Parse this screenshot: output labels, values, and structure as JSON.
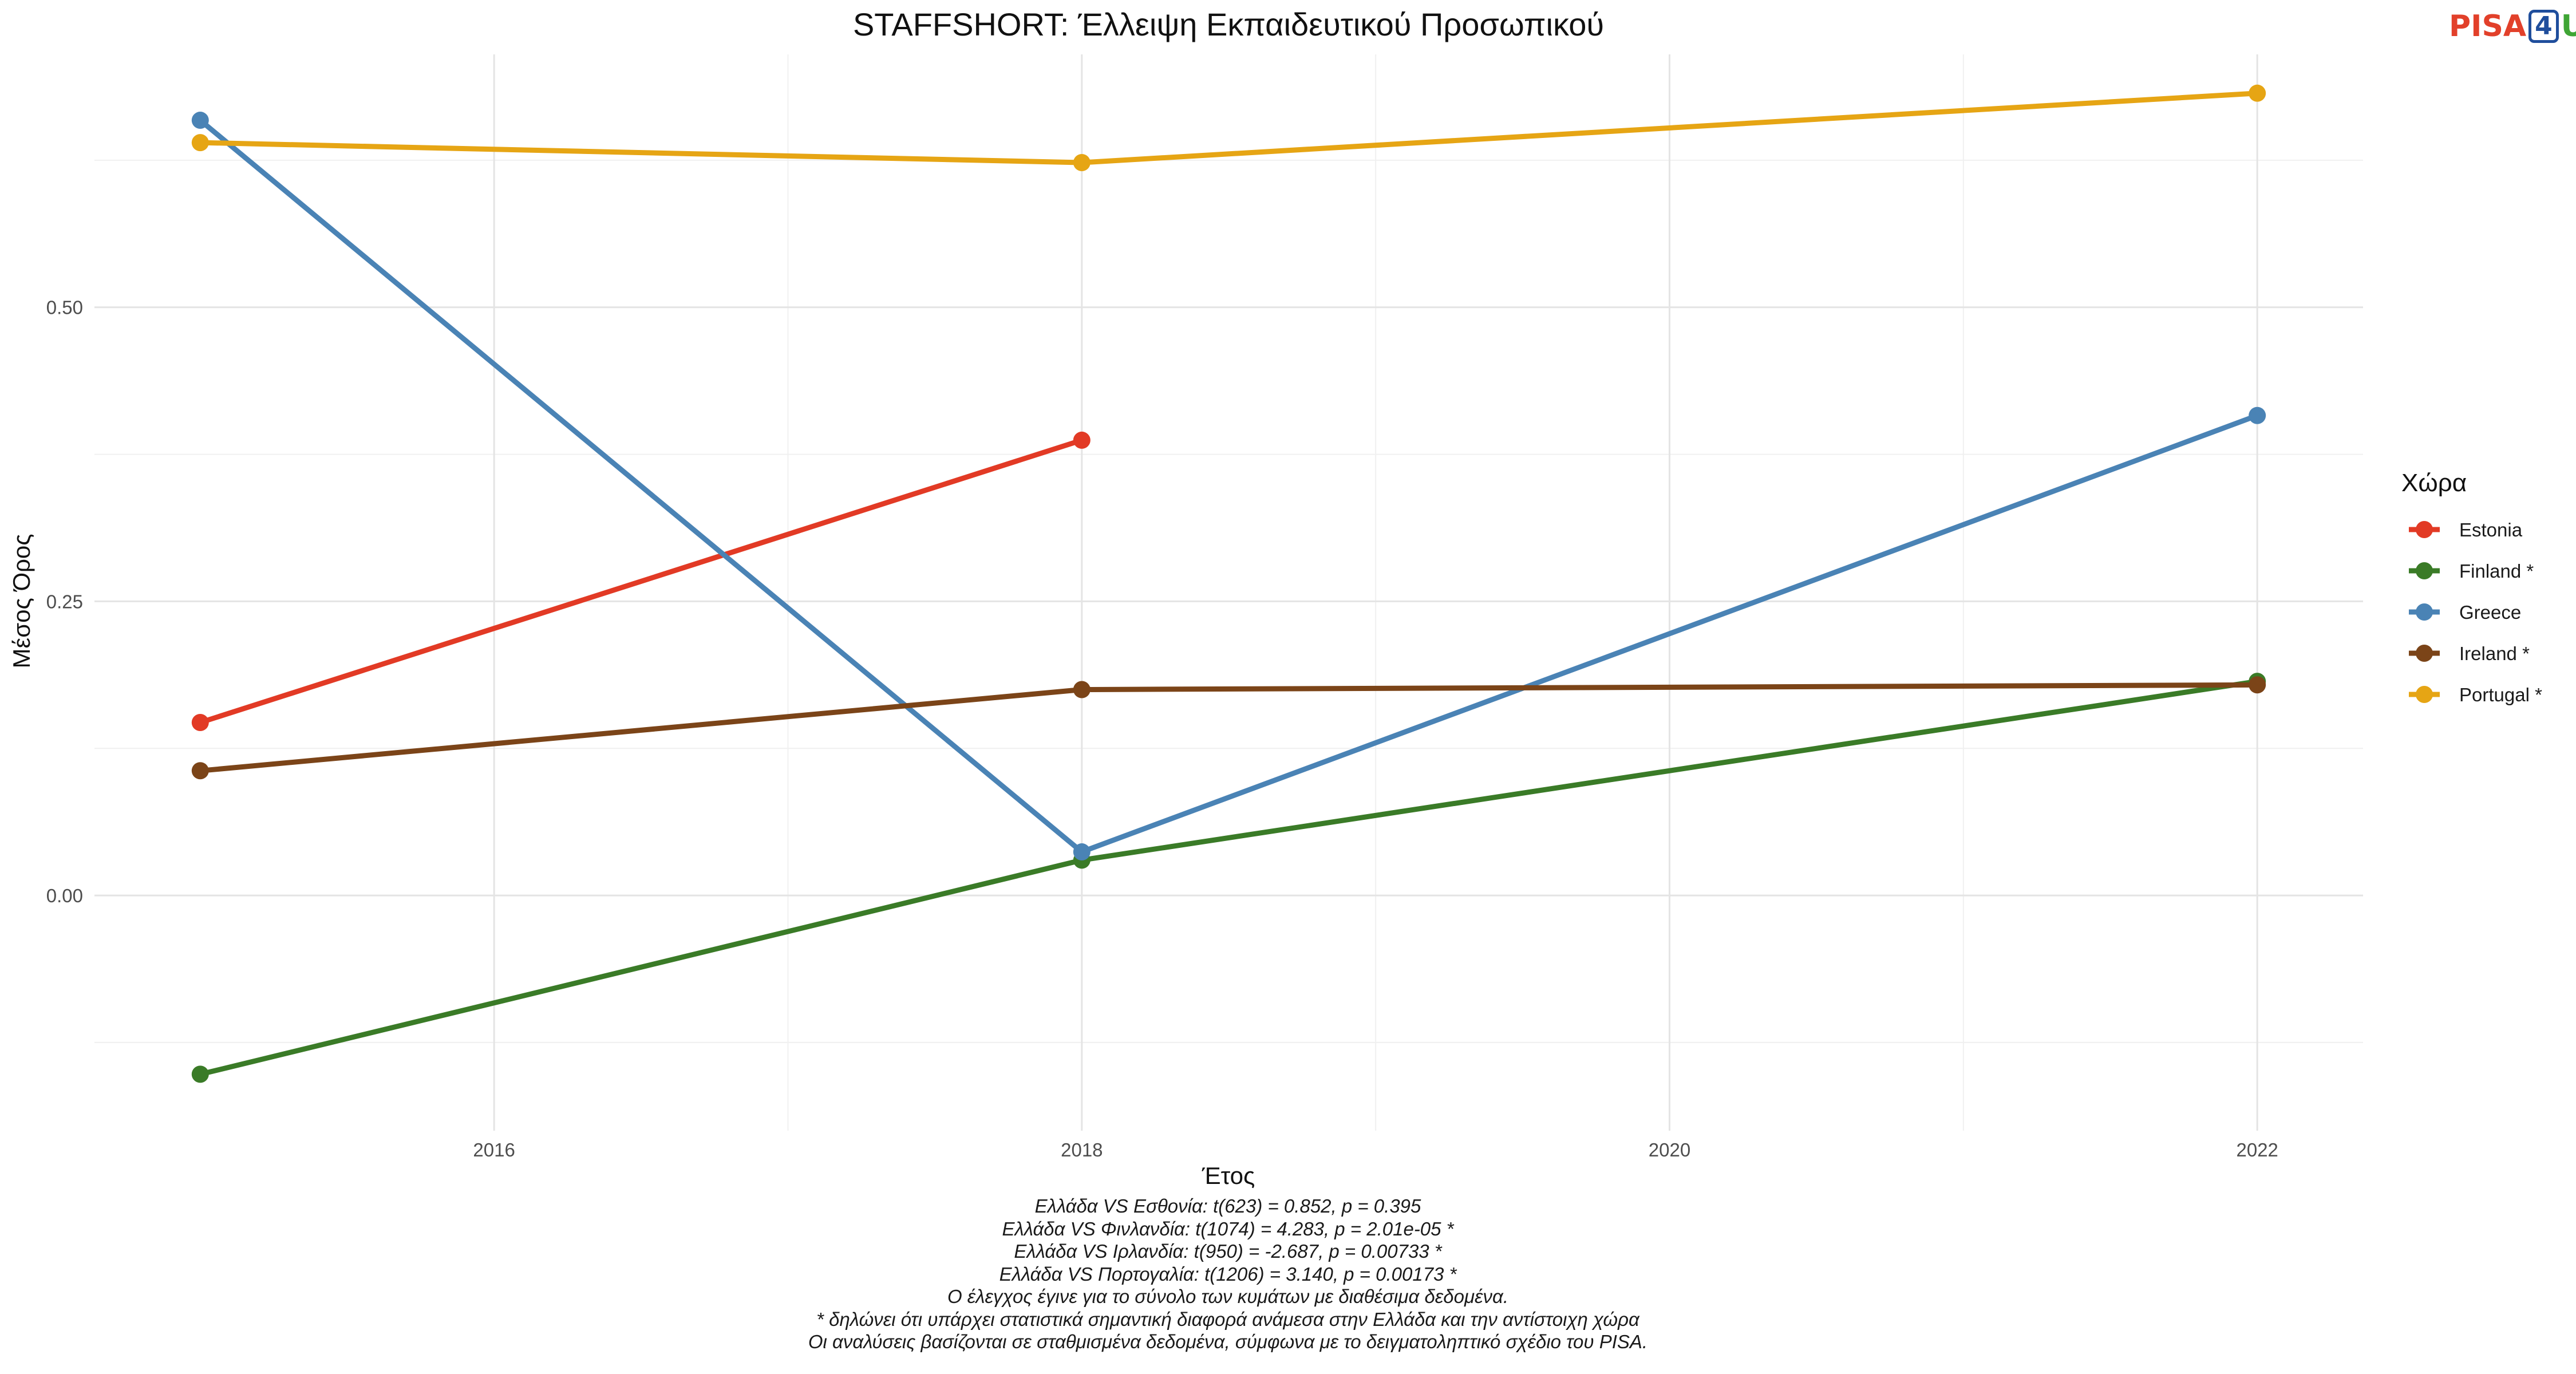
{
  "logo": {
    "part1": "PISA",
    "part2": "4",
    "part3": "U"
  },
  "chart_data": {
    "type": "line",
    "title": "STAFFSHORT: Έλλειψη Εκπαιδευτικού Προσωπικού",
    "xlabel": "Έτος",
    "ylabel": "Μέσος Όρος",
    "xlim": [
      2014.64,
      2022.36
    ],
    "ylim": [
      -0.2,
      0.715
    ],
    "x_ticks": [
      2016,
      2018,
      2020,
      2022
    ],
    "y_ticks": [
      0.0,
      0.25,
      0.5
    ],
    "y_tick_labels": [
      "0.00",
      "0.25",
      "0.50"
    ],
    "grid": true,
    "legend": {
      "title": "Χώρα",
      "position": "right"
    },
    "series": [
      {
        "name": "Estonia",
        "color": "#e23a25",
        "x": [
          2015,
          2018
        ],
        "y": [
          0.147,
          0.387
        ]
      },
      {
        "name": "Finland *",
        "color": "#3a7b27",
        "x": [
          2015,
          2018,
          2022
        ],
        "y": [
          -0.152,
          0.03,
          0.182
        ]
      },
      {
        "name": "Greece",
        "color": "#4a83b5",
        "x": [
          2015,
          2018,
          2022
        ],
        "y": [
          0.659,
          0.037,
          0.408
        ]
      },
      {
        "name": "Ireland *",
        "color": "#7b4418",
        "x": [
          2015,
          2018,
          2022
        ],
        "y": [
          0.106,
          0.175,
          0.179
        ]
      },
      {
        "name": "Portugal *",
        "color": "#e6a514",
        "x": [
          2015,
          2018,
          2022
        ],
        "y": [
          0.64,
          0.623,
          0.682
        ]
      }
    ]
  },
  "footnotes": [
    "Ελλάδα VS Εσθονία: t(623) = 0.852, p = 0.395",
    "Ελλάδα VS Φινλανδία: t(1074) = 4.283, p = 2.01e-05 *",
    "Ελλάδα VS Ιρλανδία: t(950) = -2.687, p = 0.00733 *",
    "Ελλάδα VS Πορτογαλία: t(1206) = 3.140, p = 0.00173 *",
    "Ο έλεγχος έγινε για το σύνολο των κυμάτων με διαθέσιμα δεδομένα.",
    "* δηλώνει ότι υπάρχει στατιστικά σημαντική διαφορά ανάμεσα στην Ελλάδα και την αντίστοιχη χώρα",
    "Οι αναλύσεις βασίζονται σε σταθμισμένα δεδομένα, σύμφωνα με το δειγματοληπτικό σχέδιο του PISA."
  ]
}
